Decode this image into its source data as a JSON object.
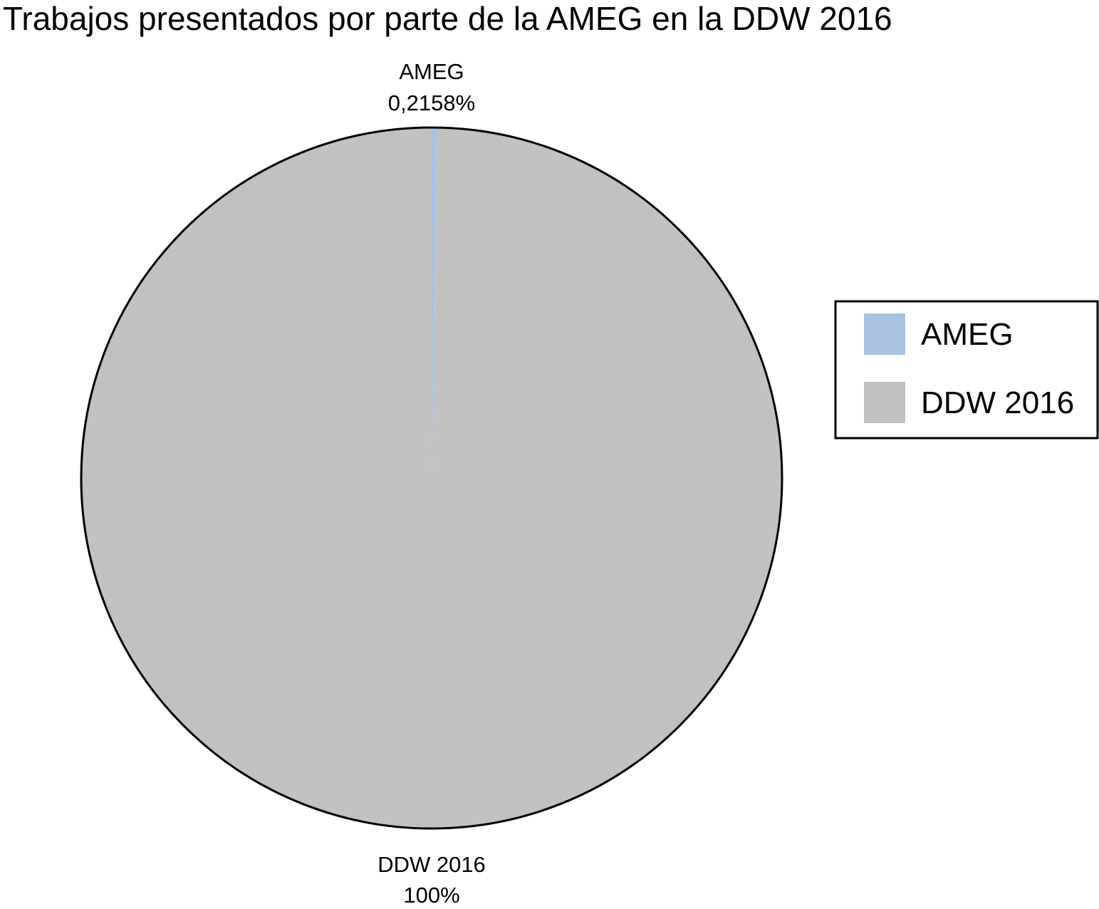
{
  "chart_data": {
    "type": "pie",
    "title": "Trabajos presentados por parte de la AMEG en la DDW 2016",
    "legend_position": "right",
    "slices": [
      {
        "name": "AMEG",
        "value": 0.2158,
        "label_name": "AMEG",
        "label_value": "0,2158%",
        "color": "#a7c1e3"
      },
      {
        "name": "DDW 2016",
        "value": 100,
        "label_name": "DDW 2016",
        "label_value": "100%",
        "color": "#c1c1c1"
      }
    ],
    "outline_color": "#000000"
  }
}
